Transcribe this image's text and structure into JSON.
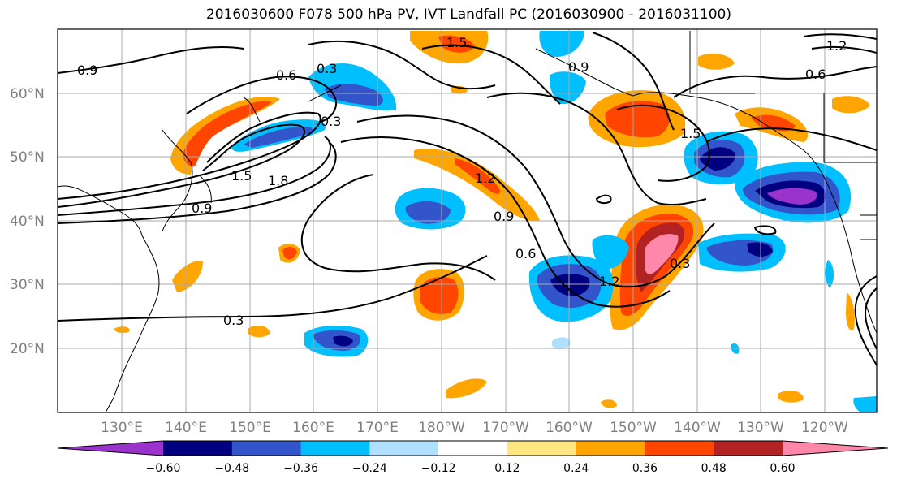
{
  "title": "2016030600 F078 500 hPa PV, IVT Landfall PC (2016030900 - 2016031100)",
  "map": {
    "lat_ticks": [
      "60°N",
      "50°N",
      "40°N",
      "30°N",
      "20°N"
    ],
    "lon_ticks": [
      "130°E",
      "140°E",
      "150°E",
      "160°E",
      "170°E",
      "180°W",
      "170°W",
      "160°W",
      "150°W",
      "140°W",
      "130°W",
      "120°W"
    ],
    "contour_labels": [
      "0.9",
      "0.6",
      "0.3",
      "1.5",
      "1.8",
      "0.9",
      "1.2",
      "0.9",
      "0.6",
      "1.2",
      "0.3",
      "0.3",
      "1.5",
      "0.9",
      "0.6",
      "1.2",
      "1.5",
      "0.3"
    ]
  },
  "colorbar": {
    "tick_labels": [
      "−0.60",
      "−0.48",
      "−0.36",
      "−0.24",
      "−0.12",
      "0.12",
      "0.24",
      "0.36",
      "0.48",
      "0.60"
    ],
    "colors": [
      "#9933cc",
      "#000080",
      "#3355cc",
      "#00bfff",
      "#b0e0ff",
      "#ffffff",
      "#ffe680",
      "#ffa500",
      "#ff4500",
      "#b22222",
      "#ff88aa"
    ]
  }
}
